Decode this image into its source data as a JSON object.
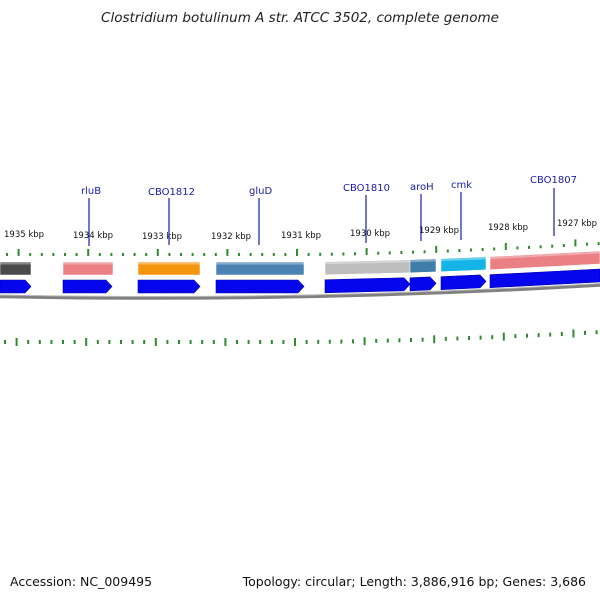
{
  "title": "Clostridium botulinum A str. ATCC 3502, complete genome",
  "accession_label": "Accession: NC_009495",
  "summary_label": "Topology: circular; Length: 3,886,916 bp; Genes: 3,686",
  "colors": {
    "gray": "#4a4a4a",
    "pink": "#ea7f84",
    "orange": "#f5950e",
    "steelblue": "#4a82b3",
    "lightgray": "#bdbdbd",
    "teal": "#3f7ea8",
    "cyan": "#14b4e6",
    "blue": "#0505ee",
    "tick": "#2e8b2e",
    "label_blue": "#1a1aa8",
    "backbone": "#808080"
  },
  "position_labels": [
    "1935 kbp",
    "1934 kbp",
    "1933 kbp",
    "1932 kbp",
    "1931 kbp",
    "1930 kbp",
    "1929 kbp",
    "1928 kbp",
    "1927 kbp"
  ],
  "gene_labels": [
    "rluB",
    "CBO1812",
    "gluD",
    "CBO1810",
    "aroH",
    "cmk",
    "CBO1807"
  ]
}
